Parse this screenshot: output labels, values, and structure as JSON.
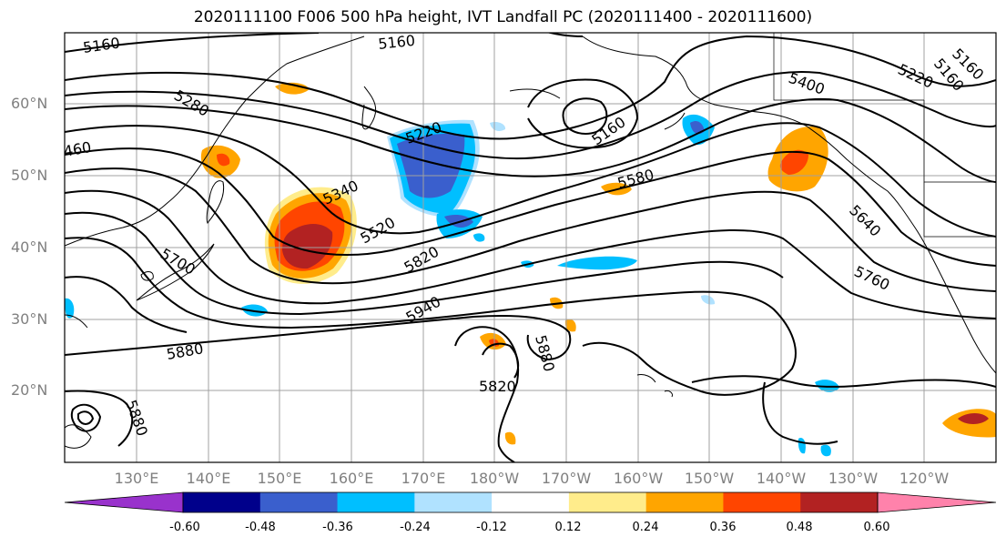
{
  "title": "2020111100 F006 500 hPa height, IVT Landfall PC (2020111400 - 2020111600)",
  "lat_labels": [
    "60°N",
    "50°N",
    "40°N",
    "30°N",
    "20°N"
  ],
  "lon_labels": [
    "130°E",
    "140°E",
    "150°E",
    "160°E",
    "170°E",
    "180°W",
    "170°W",
    "160°W",
    "150°W",
    "140°W",
    "130°W",
    "120°W"
  ],
  "contour_labels": [
    "5160",
    "5160",
    "5160",
    "5280",
    "5220",
    "5160",
    "5400",
    "5220",
    "5160",
    "460",
    "5340",
    "5520",
    "5580",
    "5640",
    "5700",
    "5820",
    "5760",
    "5940",
    "5880",
    "5880",
    "5820",
    "5880"
  ],
  "colorbar": {
    "tick_labels": [
      "-0.60",
      "-0.48",
      "-0.36",
      "-0.24",
      "-0.12",
      "0.12",
      "0.24",
      "0.36",
      "0.48",
      "0.60"
    ],
    "colors": [
      "#9932CC",
      "#00008B",
      "#3A5FCD",
      "#00BFFF",
      "#B0E2FF",
      "#FFFFFF",
      "#FFEC8B",
      "#FFA500",
      "#FF4500",
      "#B22222",
      "#FF82AB"
    ]
  },
  "colors": {
    "positive_core": "#B22222",
    "positive_mid": "#FF4500",
    "positive_low": "#FFA500",
    "positive_edge": "#FFEC8B",
    "negative_core": "#3A5FCD",
    "negative_mid": "#00BFFF",
    "negative_edge": "#B0E2FF"
  }
}
